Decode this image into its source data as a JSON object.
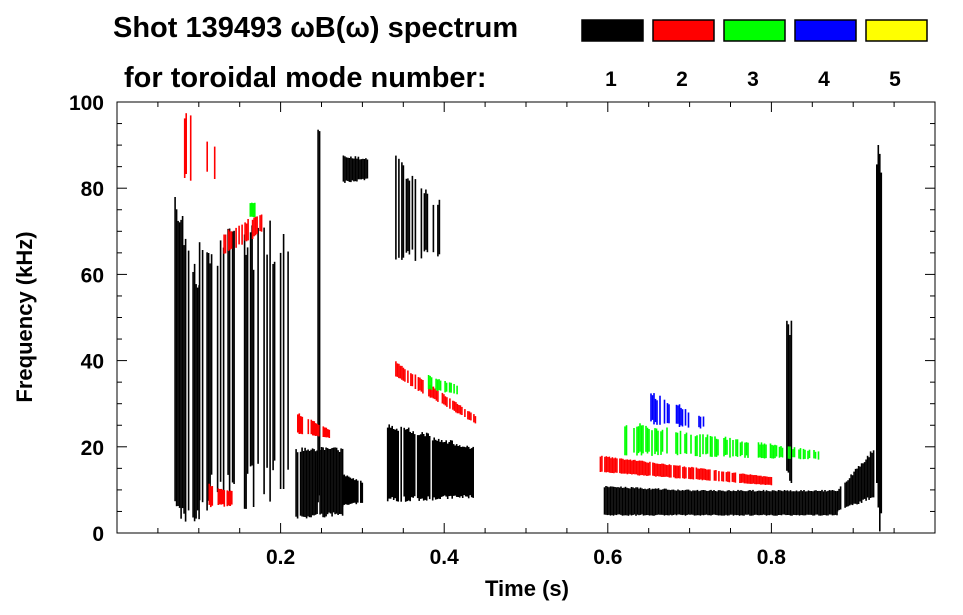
{
  "chart_data": {
    "type": "heatmap",
    "title_line1": "Shot 139493 ωB(ω) spectrum",
    "title_line2": "for toroidal mode number:",
    "xlabel": "Time (s)",
    "ylabel": "Frequency (kHz)",
    "xlim": [
      0,
      1.0
    ],
    "ylim": [
      0,
      100
    ],
    "xticks": [
      0.2,
      0.4,
      0.6,
      0.8
    ],
    "xtick_labels": [
      "0.2",
      "0.4",
      "0.6",
      "0.8"
    ],
    "yticks": [
      0,
      20,
      40,
      60,
      80,
      100
    ],
    "ytick_labels": [
      "0",
      "20",
      "40",
      "60",
      "80",
      "100"
    ],
    "legend": [
      {
        "mode": "1",
        "color": "#000000"
      },
      {
        "mode": "2",
        "color": "#ff0000"
      },
      {
        "mode": "3",
        "color": "#00ff00"
      },
      {
        "mode": "4",
        "color": "#0000ff"
      },
      {
        "mode": "5",
        "color": "#ffff00"
      }
    ],
    "features": [
      {
        "mode": 1,
        "t": [
          0.07,
          0.1
        ],
        "f0": [
          2,
          2
        ],
        "f1": [
          80,
          60
        ],
        "density": 0.9
      },
      {
        "mode": 1,
        "t": [
          0.1,
          0.21
        ],
        "f0": [
          3,
          8
        ],
        "f1": [
          70,
          75
        ],
        "density": 0.55
      },
      {
        "mode": 1,
        "t": [
          0.218,
          0.275
        ],
        "f0": [
          3,
          4
        ],
        "f1": [
          20,
          20
        ],
        "density": 0.95
      },
      {
        "mode": 1,
        "t": [
          0.275,
          0.3
        ],
        "f0": [
          6,
          7
        ],
        "f1": [
          14,
          12
        ],
        "density": 0.9
      },
      {
        "mode": 1,
        "t": [
          0.243,
          0.247
        ],
        "f0": [
          0,
          0
        ],
        "f1": [
          100,
          100
        ],
        "density": 0.8
      },
      {
        "mode": 1,
        "t": [
          0.274,
          0.307
        ],
        "f0": [
          81,
          82
        ],
        "f1": [
          88,
          87
        ],
        "density": 0.8
      },
      {
        "mode": 1,
        "t": [
          0.33,
          0.435
        ],
        "f0": [
          7,
          8
        ],
        "f1": [
          26,
          20
        ],
        "density": 0.9
      },
      {
        "mode": 1,
        "t": [
          0.34,
          0.4
        ],
        "f0": [
          62,
          64
        ],
        "f1": [
          88,
          76
        ],
        "density": 0.6
      },
      {
        "mode": 1,
        "t": [
          0.595,
          0.705
        ],
        "f0": [
          4,
          4
        ],
        "f1": [
          11,
          10
        ],
        "density": 1.0
      },
      {
        "mode": 1,
        "t": [
          0.705,
          0.88
        ],
        "f0": [
          4,
          4
        ],
        "f1": [
          10,
          10
        ],
        "density": 1.0
      },
      {
        "mode": 1,
        "t": [
          0.88,
          0.925
        ],
        "f0": [
          5,
          8
        ],
        "f1": [
          10,
          20
        ],
        "density": 0.9
      },
      {
        "mode": 1,
        "t": [
          0.926,
          0.934
        ],
        "f0": [
          0,
          0
        ],
        "f1": [
          95,
          95
        ],
        "density": 0.7
      },
      {
        "mode": 1,
        "t": [
          0.818,
          0.824
        ],
        "f0": [
          10,
          10
        ],
        "f1": [
          50,
          50
        ],
        "density": 0.7
      },
      {
        "mode": 2,
        "t": [
          0.59,
          0.8
        ],
        "f0": [
          14,
          11
        ],
        "f1": [
          18,
          13
        ],
        "density": 0.9
      },
      {
        "mode": 2,
        "t": [
          0.22,
          0.26
        ],
        "f0": [
          23,
          22
        ],
        "f1": [
          28,
          24
        ],
        "density": 0.8
      },
      {
        "mode": 2,
        "t": [
          0.34,
          0.44
        ],
        "f0": [
          36,
          25
        ],
        "f1": [
          40,
          27
        ],
        "density": 0.7
      },
      {
        "mode": 2,
        "t": [
          0.13,
          0.18
        ],
        "f0": [
          64,
          70
        ],
        "f1": [
          70,
          75
        ],
        "density": 0.6
      },
      {
        "mode": 2,
        "t": [
          0.11,
          0.14
        ],
        "f0": [
          6,
          6
        ],
        "f1": [
          12,
          10
        ],
        "density": 0.6
      },
      {
        "mode": 2,
        "t": [
          0.08,
          0.12
        ],
        "f0": [
          80,
          82
        ],
        "f1": [
          100,
          90
        ],
        "density": 0.3
      },
      {
        "mode": 3,
        "t": [
          0.62,
          0.86
        ],
        "f0": [
          18,
          17
        ],
        "f1": [
          26,
          19
        ],
        "density": 0.55
      },
      {
        "mode": 3,
        "t": [
          0.38,
          0.42
        ],
        "f0": [
          33,
          32
        ],
        "f1": [
          37,
          34
        ],
        "density": 0.6
      },
      {
        "mode": 3,
        "t": [
          0.162,
          0.168
        ],
        "f0": [
          73,
          73
        ],
        "f1": [
          77,
          77
        ],
        "density": 0.8
      },
      {
        "mode": 4,
        "t": [
          0.65,
          0.72
        ],
        "f0": [
          25,
          24
        ],
        "f1": [
          33,
          27
        ],
        "density": 0.4
      }
    ]
  }
}
